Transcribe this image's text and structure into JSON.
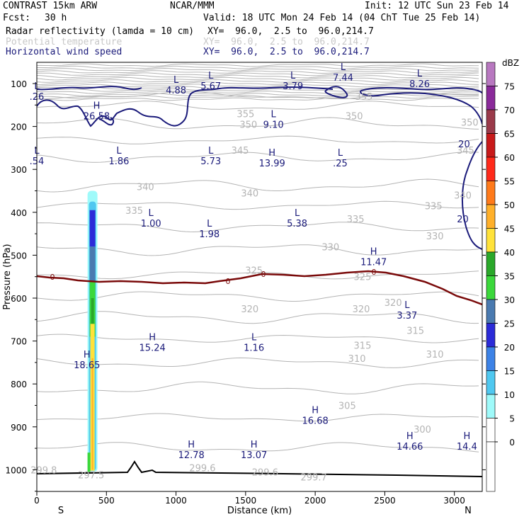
{
  "header": {
    "model": "CONTRAST 15km ARW",
    "org": "NCAR/MMM",
    "init": "Init: 12 UTC Sun 23 Feb 14",
    "fcst_label": "Fcst:",
    "fcst_value": "30 h",
    "valid": "Valid: 18 UTC Mon 24 Feb 14 (04 ChT Tue 25 Feb 14)",
    "fields": [
      {
        "name": "Radar reflectivity (lamda = 10 cm)",
        "xy": "XY=  96.0,  2.5 to  96.0,214.7",
        "color": "#000000"
      },
      {
        "name": "Potential temperature",
        "xy": "XY=  96.0,  2.5 to  96.0,214.7",
        "color": "#c8c8c8"
      },
      {
        "name": "Horizontal wind speed",
        "xy": "XY=  96.0,  2.5 to  96.0,214.7",
        "color": "#1a1a7a"
      }
    ]
  },
  "chart_data": {
    "type": "cross-section",
    "xlabel": "Distance (km)",
    "ylabel": "Pressure (hPa)",
    "xlim": [
      0,
      3200
    ],
    "ylim": [
      1050,
      50
    ],
    "x_ticks": [
      0,
      500,
      1000,
      1500,
      2000,
      2500,
      3000
    ],
    "y_ticks": [
      100,
      200,
      300,
      400,
      500,
      600,
      700,
      800,
      900,
      1000
    ],
    "x_end_labels": {
      "left": "S",
      "right": "N"
    },
    "colorbar": {
      "unit": "dBZ",
      "levels": [
        0,
        5,
        10,
        15,
        20,
        25,
        30,
        35,
        40,
        45,
        50,
        55,
        60,
        65,
        70,
        75
      ],
      "colors": [
        "#ffffff",
        "#9ffafa",
        "#4fc8f0",
        "#3c82e6",
        "#2b2bd8",
        "#4a7ab0",
        "#3bd83b",
        "#2aa82a",
        "#ffe23a",
        "#ffb02a",
        "#ff7a1a",
        "#ff2a1a",
        "#c81a1a",
        "#9a3a4a",
        "#8a2a9a",
        "#b878c0"
      ]
    },
    "theta_labels": [
      {
        "value": "355",
        "x": 1500,
        "p": 170
      },
      {
        "value": "355",
        "x": 2350,
        "p": 130
      },
      {
        "value": "350",
        "x": 1520,
        "p": 195
      },
      {
        "value": "350",
        "x": 2280,
        "p": 175
      },
      {
        "value": "350",
        "x": 3110,
        "p": 190
      },
      {
        "value": "345",
        "x": 1460,
        "p": 255
      },
      {
        "value": "345",
        "x": 3080,
        "p": 255
      },
      {
        "value": "340",
        "x": 780,
        "p": 340
      },
      {
        "value": "340",
        "x": 1530,
        "p": 355
      },
      {
        "value": "340",
        "x": 3060,
        "p": 360
      },
      {
        "value": "335",
        "x": 700,
        "p": 395
      },
      {
        "value": "335",
        "x": 2290,
        "p": 415
      },
      {
        "value": "335",
        "x": 2850,
        "p": 385
      },
      {
        "value": "330",
        "x": 2110,
        "p": 480
      },
      {
        "value": "330",
        "x": 2860,
        "p": 455
      },
      {
        "value": "325",
        "x": 1560,
        "p": 535
      },
      {
        "value": "325",
        "x": 2340,
        "p": 550
      },
      {
        "value": "320",
        "x": 1530,
        "p": 625
      },
      {
        "value": "320",
        "x": 2330,
        "p": 625
      },
      {
        "value": "320",
        "x": 2560,
        "p": 610
      },
      {
        "value": "315",
        "x": 2340,
        "p": 710
      },
      {
        "value": "315",
        "x": 2720,
        "p": 675
      },
      {
        "value": "310",
        "x": 2300,
        "p": 740
      },
      {
        "value": "310",
        "x": 2860,
        "p": 730
      },
      {
        "value": "305",
        "x": 2230,
        "p": 850
      },
      {
        "value": "300",
        "x": 2770,
        "p": 905
      },
      {
        "value": "299.8",
        "x": 50,
        "p": 1000
      },
      {
        "value": "297.5",
        "x": 390,
        "p": 1012
      },
      {
        "value": "299.6",
        "x": 1190,
        "p": 995
      },
      {
        "value": "299.6",
        "x": 1640,
        "p": 1005
      },
      {
        "value": "299.7",
        "x": 1990,
        "p": 1017
      }
    ],
    "zero_contour_label": "0",
    "wind_contour_labels": [
      {
        "value": "20",
        "x": 3070,
        "p": 240
      },
      {
        "value": "20",
        "x": 3060,
        "p": 415
      }
    ],
    "extrema": [
      {
        "type": "L",
        "value": "4.88",
        "x": 1000,
        "p": 105
      },
      {
        "type": "L",
        "value": "5.67",
        "x": 1250,
        "p": 95
      },
      {
        "type": "L",
        "value": "3.79",
        "x": 1840,
        "p": 95
      },
      {
        "type": "L",
        "value": "7.44",
        "x": 2200,
        "p": 75
      },
      {
        "type": "L",
        "value": "8.26",
        "x": 2750,
        "p": 90
      },
      {
        "type": "H",
        "value": "26.58",
        "x": 430,
        "p": 165
      },
      {
        "type": "L",
        "value": ".26",
        "x": 0,
        "p": 120
      },
      {
        "type": "L",
        "value": "9.10",
        "x": 1700,
        "p": 185
      },
      {
        "type": "L",
        "value": "5.73",
        "x": 1250,
        "p": 270
      },
      {
        "type": "L",
        "value": ".54",
        "x": 0,
        "p": 270
      },
      {
        "type": "L",
        "value": "1.86",
        "x": 590,
        "p": 270
      },
      {
        "type": "H",
        "value": "13.99",
        "x": 1690,
        "p": 275
      },
      {
        "type": "L",
        "value": ".25",
        "x": 2180,
        "p": 275
      },
      {
        "type": "L",
        "value": "1.00",
        "x": 820,
        "p": 415
      },
      {
        "type": "L",
        "value": "1.98",
        "x": 1240,
        "p": 440
      },
      {
        "type": "L",
        "value": "5.38",
        "x": 1870,
        "p": 415
      },
      {
        "type": "H",
        "value": "11.47",
        "x": 2420,
        "p": 505
      },
      {
        "type": "L",
        "value": "3.37",
        "x": 2660,
        "p": 630
      },
      {
        "type": "H",
        "value": "15.24",
        "x": 830,
        "p": 705
      },
      {
        "type": "L",
        "value": "1.16",
        "x": 1560,
        "p": 705
      },
      {
        "type": "H",
        "value": "18.65",
        "x": 360,
        "p": 745
      },
      {
        "type": "H",
        "value": "16.68",
        "x": 2000,
        "p": 875
      },
      {
        "type": "H",
        "value": "12.78",
        "x": 1110,
        "p": 955
      },
      {
        "type": "H",
        "value": "13.07",
        "x": 1560,
        "p": 955
      },
      {
        "type": "H",
        "value": "14.66",
        "x": 2680,
        "p": 935
      },
      {
        "type": "H",
        "value": "14.4",
        "x": 3090,
        "p": 935
      }
    ],
    "reflectivity_column": {
      "x_center": 400,
      "p_top": 350,
      "p_bottom": 1005,
      "max_dbz": 45
    },
    "colors": {
      "theta": "#b4b4b4",
      "wind": "#1a1a7a",
      "zero_isotherm": "#7a0a0a",
      "terrain": "#000000"
    }
  }
}
